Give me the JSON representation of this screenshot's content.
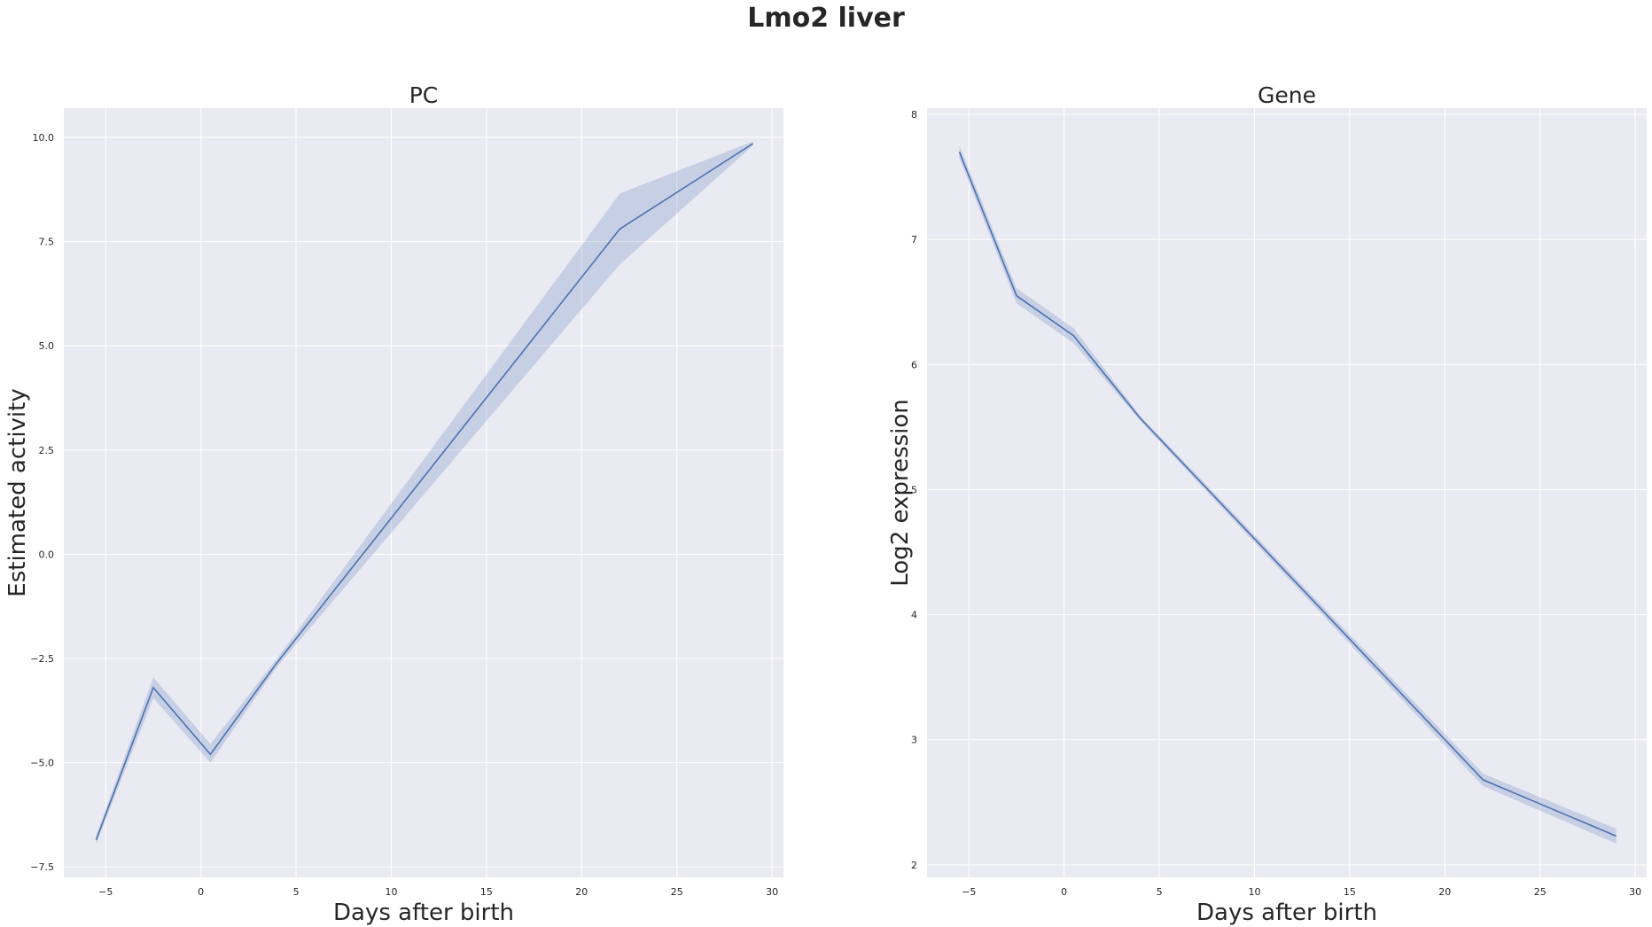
{
  "figure": {
    "title": "Lmo2 liver",
    "background": "#ffffff",
    "axes_facecolor": "#eaeaf2",
    "grid_color": "#ffffff",
    "line_color": "#4c72b0"
  },
  "chart_data": [
    {
      "type": "line",
      "title": "PC",
      "xlabel": "Days after birth",
      "ylabel": "Estimated activity",
      "grid": true,
      "xlim": [
        -7.2,
        30.6
      ],
      "ylim": [
        -7.75,
        10.7
      ],
      "xticks": [
        -5,
        0,
        5,
        10,
        15,
        20,
        25,
        30
      ],
      "xtick_labels": [
        "−5",
        "0",
        "5",
        "10",
        "15",
        "20",
        "25",
        "30"
      ],
      "yticks": [
        -7.5,
        -5.0,
        -2.5,
        0.0,
        2.5,
        5.0,
        7.5,
        10.0
      ],
      "ytick_labels": [
        "−7.5",
        "−5.0",
        "−2.5",
        "0.0",
        "2.5",
        "5.0",
        "7.5",
        "10.0"
      ],
      "series": [
        {
          "x": [
            -5.5,
            -2.5,
            0.5,
            4,
            22,
            29
          ],
          "y": [
            -6.85,
            -3.2,
            -4.8,
            -2.6,
            7.8,
            9.85
          ],
          "ci_lower": [
            -6.95,
            -3.45,
            -5.0,
            -2.7,
            6.95,
            9.8
          ],
          "ci_upper": [
            -6.75,
            -2.95,
            -4.55,
            -2.5,
            8.65,
            9.9
          ]
        }
      ]
    },
    {
      "type": "line",
      "title": "Gene",
      "xlabel": "Days after birth",
      "ylabel": "Log2 expression",
      "grid": true,
      "xlim": [
        -7.2,
        30.6
      ],
      "ylim": [
        1.9,
        8.05
      ],
      "xticks": [
        -5,
        0,
        5,
        10,
        15,
        20,
        25,
        30
      ],
      "xtick_labels": [
        "−5",
        "0",
        "5",
        "10",
        "15",
        "20",
        "25",
        "30"
      ],
      "yticks": [
        2,
        3,
        4,
        5,
        6,
        7,
        8
      ],
      "ytick_labels": [
        "2",
        "3",
        "4",
        "5",
        "6",
        "7",
        "8"
      ],
      "series": [
        {
          "x": [
            -5.5,
            -2.5,
            0.5,
            4,
            22,
            29
          ],
          "y": [
            7.7,
            6.55,
            6.23,
            5.57,
            2.68,
            2.23
          ],
          "ci_lower": [
            7.65,
            6.49,
            6.17,
            5.55,
            2.63,
            2.17
          ],
          "ci_upper": [
            7.75,
            6.61,
            6.29,
            5.59,
            2.73,
            2.29
          ]
        }
      ]
    }
  ]
}
